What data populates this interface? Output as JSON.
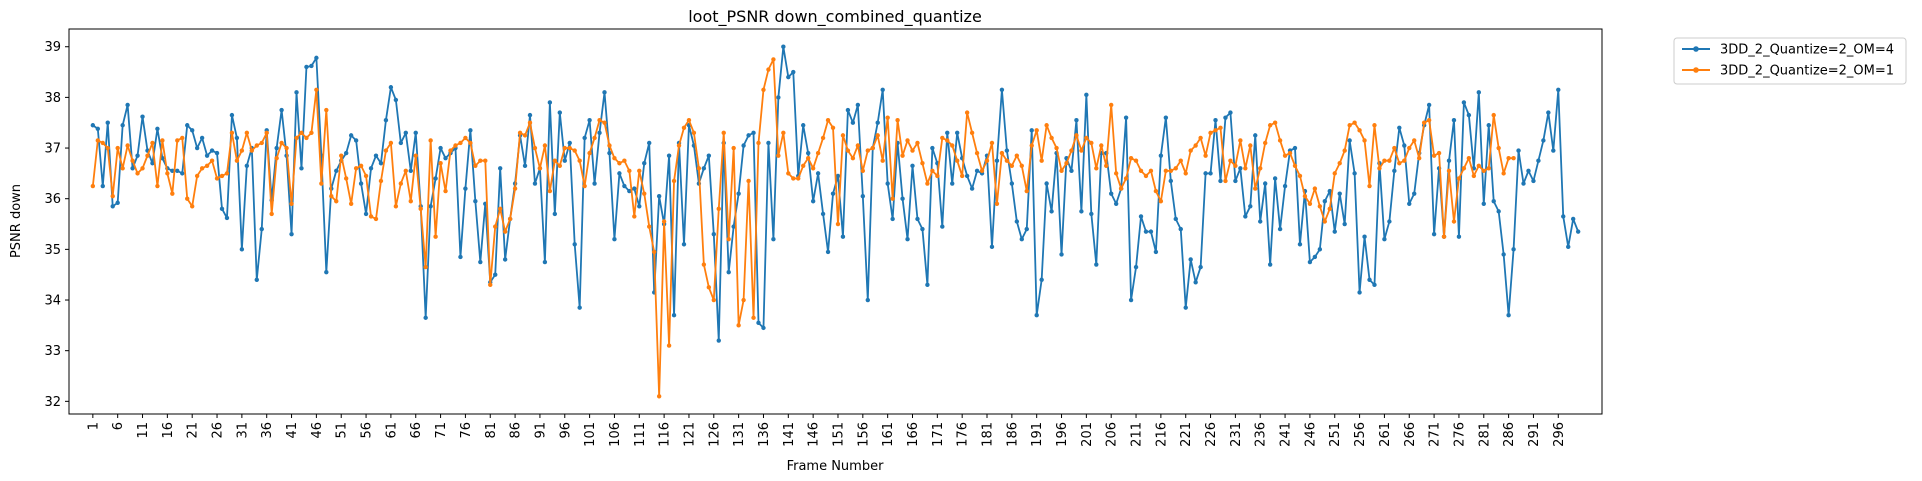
{
  "chart_data": {
    "type": "line",
    "title": "loot_PSNR down_combined_quantize",
    "xlabel": "Frame Number",
    "ylabel": "PSNR down",
    "xlim": [
      -3.8,
      304.8
    ],
    "ylim": [
      31.75,
      39.35
    ],
    "yticks": [
      32,
      33,
      34,
      35,
      36,
      37,
      38,
      39
    ],
    "xticks": [
      1,
      6,
      11,
      16,
      21,
      26,
      31,
      36,
      41,
      46,
      51,
      56,
      61,
      66,
      71,
      76,
      81,
      86,
      91,
      96,
      101,
      106,
      111,
      116,
      121,
      126,
      131,
      136,
      141,
      146,
      151,
      156,
      161,
      166,
      171,
      176,
      181,
      186,
      191,
      196,
      201,
      206,
      211,
      216,
      221,
      226,
      231,
      236,
      241,
      246,
      251,
      256,
      261,
      266,
      271,
      276,
      281,
      286,
      291,
      296
    ],
    "legend_position": "outside-top-right",
    "grid": false,
    "x_start": 1,
    "series": [
      {
        "name": "3DD_2_Quantize=2_OM=4",
        "color": "#1f77b4",
        "values": [
          37.45,
          37.38,
          36.25,
          37.5,
          35.85,
          35.92,
          37.45,
          37.85,
          36.6,
          36.85,
          37.62,
          36.95,
          36.7,
          37.38,
          36.8,
          36.6,
          36.55,
          36.55,
          36.5,
          37.45,
          37.35,
          37.0,
          37.2,
          36.85,
          36.95,
          36.9,
          35.8,
          35.62,
          37.65,
          37.2,
          35.0,
          36.65,
          37.0,
          34.4,
          35.4,
          37.35,
          35.97,
          37.0,
          37.75,
          36.85,
          35.3,
          38.1,
          36.6,
          38.6,
          38.62,
          38.78,
          36.85,
          34.55,
          36.2,
          36.55,
          36.75,
          36.9,
          37.25,
          37.15,
          36.3,
          35.7,
          36.6,
          36.85,
          36.7,
          37.55,
          38.2,
          37.95,
          37.1,
          37.3,
          36.55,
          37.3,
          35.85,
          33.65,
          35.85,
          36.4,
          37.0,
          36.8,
          36.9,
          37.0,
          34.85,
          36.2,
          37.35,
          35.95,
          34.75,
          35.9,
          34.35,
          34.5,
          36.6,
          34.8,
          35.6,
          36.3,
          37.25,
          36.65,
          37.65,
          36.3,
          36.6,
          34.75,
          37.9,
          35.7,
          37.7,
          36.75,
          37.1,
          35.1,
          33.85,
          37.2,
          37.55,
          36.3,
          37.3,
          38.1,
          36.9,
          35.2,
          36.5,
          36.25,
          36.15,
          36.2,
          35.85,
          36.7,
          37.1,
          34.15,
          36.05,
          35.5,
          36.85,
          33.7,
          37.1,
          35.1,
          37.45,
          37.05,
          36.3,
          36.6,
          36.85,
          35.3,
          33.2,
          37.1,
          34.55,
          35.45,
          36.1,
          37.05,
          37.25,
          37.3,
          33.55,
          33.45,
          37.1,
          35.2,
          38.0,
          39.0,
          38.4,
          38.5,
          36.45,
          37.45,
          36.9,
          35.95,
          36.5,
          35.7,
          34.95,
          36.1,
          36.45,
          35.25,
          37.75,
          37.5,
          37.85,
          36.05,
          34.0,
          37.0,
          37.5,
          38.15,
          36.3,
          35.6,
          37.1,
          36.0,
          35.2,
          36.65,
          35.6,
          35.4,
          34.3,
          37.0,
          36.7,
          35.45,
          37.3,
          36.3,
          37.3,
          36.8,
          36.45,
          36.2,
          36.55,
          36.5,
          36.85,
          35.05,
          36.75,
          38.15,
          36.95,
          36.3,
          35.55,
          35.2,
          35.4,
          37.35,
          33.7,
          34.4,
          36.3,
          35.75,
          36.9,
          34.9,
          36.8,
          36.55,
          37.55,
          35.75,
          38.05,
          35.7,
          34.7,
          36.9,
          36.9,
          36.1,
          35.9,
          36.2,
          37.6,
          34.0,
          34.65,
          35.65,
          35.35,
          35.35,
          34.95,
          36.85,
          37.6,
          36.35,
          35.6,
          35.4,
          33.85,
          34.8,
          34.35,
          34.65,
          36.5,
          36.5,
          37.55,
          36.35,
          37.6,
          37.7,
          36.35,
          36.6,
          35.65,
          35.85,
          37.25,
          35.55,
          36.3,
          34.7,
          36.4,
          35.4,
          36.25,
          36.95,
          37.0,
          35.1,
          36.15,
          34.75,
          34.85,
          35.0,
          35.95,
          36.15,
          35.35,
          36.1,
          35.5,
          37.15,
          36.5,
          34.15,
          35.25,
          34.4,
          34.3,
          36.7,
          35.2,
          35.55,
          36.55,
          37.4,
          37.05,
          35.9,
          36.1,
          36.9,
          37.45,
          37.85,
          35.3,
          36.6,
          35.25,
          36.75,
          37.55,
          35.25,
          37.9,
          37.65,
          36.6,
          38.1,
          35.9,
          37.45,
          35.95,
          35.75,
          34.9,
          33.7,
          35.0,
          36.95,
          36.3,
          36.55,
          36.35,
          36.75,
          37.15,
          37.7,
          36.95,
          38.15,
          35.65,
          35.05,
          35.6,
          35.35
        ]
      },
      {
        "name": "3DD_2_Quantize=2_OM=1",
        "color": "#ff7f0e",
        "values": [
          36.25,
          37.15,
          37.1,
          37.0,
          36.05,
          37.0,
          36.6,
          37.05,
          36.75,
          36.5,
          36.6,
          36.85,
          37.1,
          36.25,
          37.15,
          36.5,
          36.1,
          37.15,
          37.2,
          36.0,
          35.85,
          36.45,
          36.6,
          36.65,
          36.75,
          36.4,
          36.45,
          36.5,
          37.3,
          36.75,
          36.95,
          37.3,
          36.95,
          37.05,
          37.1,
          37.3,
          35.7,
          36.8,
          37.1,
          37.0,
          35.9,
          37.2,
          37.3,
          37.2,
          37.3,
          38.15,
          36.3,
          37.75,
          36.05,
          35.95,
          36.85,
          36.4,
          35.9,
          36.6,
          36.65,
          36.45,
          35.65,
          35.6,
          36.35,
          36.95,
          37.1,
          35.85,
          36.3,
          36.55,
          35.95,
          36.85,
          35.8,
          34.65,
          37.15,
          35.25,
          36.7,
          36.15,
          36.95,
          37.05,
          37.1,
          37.2,
          37.1,
          36.65,
          36.75,
          36.75,
          34.3,
          35.45,
          35.8,
          35.35,
          35.6,
          36.2,
          37.3,
          37.25,
          37.5,
          37.0,
          36.6,
          37.05,
          36.15,
          36.75,
          36.65,
          37.0,
          37.0,
          36.95,
          36.75,
          36.25,
          36.9,
          37.2,
          37.55,
          37.5,
          37.05,
          36.8,
          36.7,
          36.75,
          36.55,
          35.65,
          36.55,
          36.1,
          35.45,
          34.95,
          32.1,
          35.55,
          33.1,
          36.35,
          37.05,
          37.4,
          37.55,
          37.3,
          36.6,
          34.7,
          34.25,
          34.0,
          35.8,
          37.3,
          35.2,
          37.0,
          33.5,
          34.0,
          36.35,
          33.65,
          37.1,
          38.15,
          38.55,
          38.75,
          36.85,
          37.3,
          36.5,
          36.4,
          36.4,
          36.65,
          36.8,
          36.6,
          36.9,
          37.2,
          37.55,
          37.4,
          35.5,
          37.25,
          36.95,
          36.8,
          37.05,
          36.55,
          36.95,
          37.0,
          37.25,
          36.75,
          37.6,
          36.0,
          37.55,
          36.85,
          37.15,
          36.95,
          37.1,
          36.7,
          36.3,
          36.55,
          36.45,
          37.2,
          37.15,
          37.05,
          36.75,
          36.45,
          37.7,
          37.3,
          36.9,
          36.55,
          36.75,
          37.1,
          35.9,
          36.9,
          36.75,
          36.65,
          36.85,
          36.65,
          36.15,
          37.05,
          37.35,
          36.75,
          37.45,
          37.2,
          37.0,
          36.55,
          36.7,
          36.95,
          37.25,
          36.95,
          37.2,
          37.1,
          36.6,
          37.05,
          36.65,
          37.85,
          36.5,
          36.2,
          36.4,
          36.8,
          36.75,
          36.55,
          36.45,
          36.55,
          36.15,
          35.95,
          36.55,
          36.55,
          36.6,
          36.75,
          36.5,
          36.95,
          37.05,
          37.2,
          36.85,
          37.3,
          37.35,
          37.4,
          36.35,
          36.75,
          36.65,
          37.15,
          36.6,
          37.05,
          36.2,
          36.6,
          37.1,
          37.45,
          37.5,
          37.15,
          36.85,
          36.9,
          36.65,
          36.45,
          36.05,
          35.9,
          36.2,
          35.85,
          35.55,
          35.8,
          36.5,
          36.7,
          36.95,
          37.45,
          37.5,
          37.35,
          37.15,
          36.25,
          37.45,
          36.6,
          36.75,
          36.75,
          37.0,
          36.7,
          36.75,
          37.0,
          37.15,
          36.8,
          37.5,
          37.55,
          36.85,
          36.9,
          35.25,
          36.55,
          35.55,
          36.4,
          36.6,
          36.8,
          36.45,
          36.65,
          36.55,
          36.6,
          37.65,
          37.0,
          36.5,
          36.8,
          36.8
        ]
      }
    ]
  }
}
